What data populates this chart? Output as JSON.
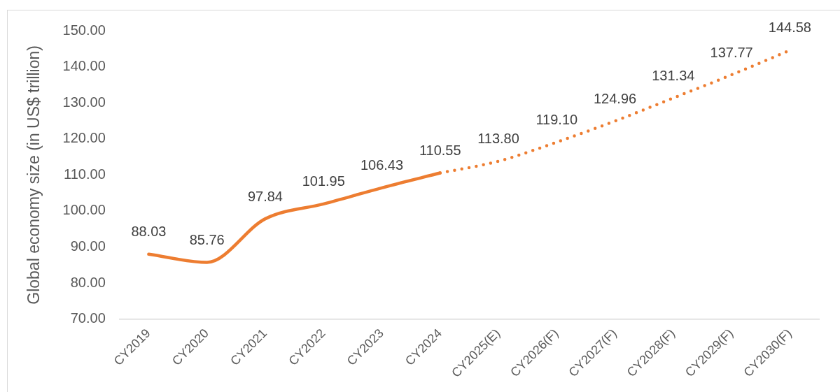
{
  "chart_data": {
    "type": "line",
    "ylabel": "Global economy size (in US$ trillion)",
    "categories": [
      "CY2019",
      "CY2020",
      "CY2021",
      "CY2022",
      "CY2023",
      "CY2024",
      "CY2025(E)",
      "CY2026(F)",
      "CY2027(F)",
      "CY2028(F)",
      "CY2029(F)",
      "CY2030(F)"
    ],
    "series": [
      {
        "color": "#ed7d31",
        "line_style": "solid",
        "values": [
          88.03,
          85.76,
          97.84,
          101.95,
          106.43,
          110.55,
          null,
          null,
          null,
          null,
          null,
          null
        ],
        "value_labels": [
          "88.03",
          "85.76",
          "97.84",
          "101.95",
          "106.43",
          "110.55",
          null,
          null,
          null,
          null,
          null,
          null
        ]
      },
      {
        "color": "#ed7d31",
        "line_style": "dotted",
        "values": [
          null,
          null,
          null,
          null,
          null,
          110.55,
          113.8,
          119.1,
          124.96,
          131.34,
          137.77,
          144.58
        ],
        "value_labels": [
          null,
          null,
          null,
          null,
          null,
          null,
          "113.80",
          "119.10",
          "124.96",
          "131.34",
          "137.77",
          "144.58"
        ]
      }
    ],
    "ylim": [
      70,
      150
    ],
    "yticks": [
      {
        "value": 70,
        "label": "70.00"
      },
      {
        "value": 80,
        "label": "80.00"
      },
      {
        "value": 90,
        "label": "90.00"
      },
      {
        "value": 100,
        "label": "100.00"
      },
      {
        "value": 110,
        "label": "110.00"
      },
      {
        "value": 120,
        "label": "120.00"
      },
      {
        "value": 130,
        "label": "130.00"
      },
      {
        "value": 140,
        "label": "140.00"
      },
      {
        "value": 150,
        "label": "150.00"
      }
    ],
    "grid": false,
    "legend": false,
    "marker": "none"
  }
}
